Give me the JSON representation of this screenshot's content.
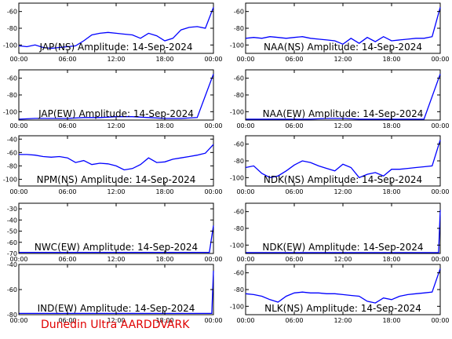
{
  "footer": "Dunedin Ultra AARDDVARK",
  "chart_data": [
    {
      "type": "line",
      "title": "JAP(NS) Amplitude: 14-Sep-2024",
      "xticks": [
        "00:00",
        "06:00",
        "12:00",
        "18:00",
        "00:00"
      ],
      "ylim": [
        -110,
        -50
      ],
      "yticks": [
        -100,
        -80,
        -60
      ],
      "color": "#0000ff",
      "x_hours": [
        0,
        1,
        2,
        3,
        4,
        5,
        6,
        7,
        8,
        9,
        10,
        11,
        12,
        13,
        14,
        15,
        16,
        17,
        18,
        19,
        20,
        21,
        22,
        23,
        24
      ],
      "values": [
        -101,
        -102,
        -100,
        -103,
        -104,
        -103,
        -102,
        -101,
        -95,
        -88,
        -86,
        -85,
        -86,
        -87,
        -88,
        -92,
        -86,
        -89,
        -95,
        -92,
        -82,
        -79,
        -78,
        -80,
        -55
      ]
    },
    {
      "type": "line",
      "title": "NAA(NS) Amplitude: 14-Sep-2024",
      "xticks": [
        "00:00",
        "06:00",
        "12:00",
        "18:00",
        "00:00"
      ],
      "ylim": [
        -110,
        -50
      ],
      "yticks": [
        -100,
        -80,
        -60
      ],
      "color": "#0000ff",
      "x_hours": [
        0,
        1,
        2,
        3,
        4,
        5,
        6,
        7,
        8,
        9,
        10,
        11,
        12,
        13,
        14,
        15,
        16,
        17,
        18,
        19,
        20,
        21,
        22,
        23,
        24
      ],
      "values": [
        -92,
        -91,
        -92,
        -90,
        -91,
        -92,
        -91,
        -90,
        -92,
        -93,
        -94,
        -95,
        -99,
        -92,
        -98,
        -91,
        -96,
        -90,
        -95,
        -94,
        -93,
        -92,
        -92,
        -90,
        -55
      ]
    },
    {
      "type": "line",
      "title": "JAP(EW) Amplitude: 14-Sep-2024",
      "xticks": [
        "00:00",
        "06:00",
        "12:00",
        "18:00",
        "00:00"
      ],
      "ylim": [
        -110,
        -50
      ],
      "yticks": [
        -100,
        -80,
        -60
      ],
      "color": "#0000ff",
      "x_hours": [
        0,
        2,
        4,
        6,
        8,
        10,
        12,
        14,
        16,
        18,
        20,
        22,
        24
      ],
      "values": [
        -109,
        -108,
        -108,
        -108,
        -107,
        -107,
        -106,
        -106,
        -107,
        -108,
        -108,
        -107,
        -55
      ]
    },
    {
      "type": "line",
      "title": "NAA(EW) Amplitude: 14-Sep-2024",
      "xticks": [
        "00:00",
        "06:00",
        "12:00",
        "18:00",
        "00:00"
      ],
      "ylim": [
        -110,
        -50
      ],
      "yticks": [
        -100,
        -80,
        -60
      ],
      "color": "#0000ff",
      "x_hours": [
        0,
        2,
        4,
        6,
        8,
        10,
        12,
        14,
        16,
        18,
        20,
        22,
        24
      ],
      "values": [
        -109,
        -109,
        -109,
        -109,
        -109,
        -108,
        -108,
        -109,
        -109,
        -109,
        -109,
        -109,
        -55
      ]
    },
    {
      "type": "line",
      "title": "NPM(NS) Amplitude: 14-Sep-2024",
      "xticks": [
        "00:00",
        "06:00",
        "12:00",
        "18:00",
        "00:00"
      ],
      "ylim": [
        -110,
        -35
      ],
      "yticks": [
        -100,
        -80,
        -60,
        -40
      ],
      "color": "#0000ff",
      "x_hours": [
        0,
        1,
        2,
        3,
        4,
        5,
        6,
        7,
        8,
        9,
        10,
        11,
        12,
        13,
        14,
        15,
        16,
        17,
        18,
        19,
        20,
        21,
        22,
        23,
        24
      ],
      "values": [
        -63,
        -63,
        -64,
        -66,
        -67,
        -66,
        -68,
        -75,
        -72,
        -78,
        -76,
        -77,
        -80,
        -86,
        -84,
        -78,
        -68,
        -75,
        -74,
        -70,
        -68,
        -66,
        -64,
        -61,
        -48
      ]
    },
    {
      "type": "line",
      "title": "NDK(NS) Amplitude: 14-Sep-2024",
      "xticks": [
        "00:00",
        "06:00",
        "12:00",
        "18:00",
        "00:00"
      ],
      "ylim": [
        -110,
        -50
      ],
      "yticks": [
        -100,
        -80,
        -60
      ],
      "color": "#0000ff",
      "x_hours": [
        0,
        1,
        2,
        3,
        4,
        5,
        6,
        7,
        8,
        9,
        10,
        11,
        12,
        13,
        14,
        15,
        16,
        17,
        18,
        19,
        20,
        21,
        22,
        23,
        24
      ],
      "values": [
        -88,
        -86,
        -95,
        -100,
        -98,
        -92,
        -85,
        -80,
        -82,
        -86,
        -89,
        -92,
        -84,
        -88,
        -100,
        -96,
        -94,
        -98,
        -90,
        -90,
        -89,
        -88,
        -87,
        -86,
        -55
      ]
    },
    {
      "type": "line",
      "title": "NWC(EW) Amplitude: 14-Sep-2024",
      "xticks": [
        "00:00",
        "06:00",
        "12:00",
        "18:00",
        "00:00"
      ],
      "ylim": [
        -70,
        -25
      ],
      "yticks": [
        -70,
        -60,
        -50,
        -40,
        -30
      ],
      "color": "#0000ff",
      "x_hours": [
        0,
        2,
        4,
        6,
        8,
        10,
        12,
        14,
        16,
        18,
        20,
        22,
        23.5,
        24
      ],
      "values": [
        -69,
        -69,
        -69,
        -69,
        -69,
        -69,
        -69,
        -69,
        -69,
        -69,
        -69,
        -69,
        -69,
        -45
      ]
    },
    {
      "type": "line",
      "title": "NDK(EW) Amplitude: 14-Sep-2024",
      "xticks": [
        "00:00",
        "06:00",
        "12:00",
        "18:00",
        "00:00"
      ],
      "ylim": [
        -110,
        -50
      ],
      "yticks": [
        -100,
        -80,
        -60
      ],
      "color": "#0000ff",
      "x_hours": [
        0,
        2,
        4,
        6,
        8,
        10,
        12,
        14,
        16,
        18,
        20,
        22,
        23.8,
        24
      ],
      "values": [
        -109,
        -109,
        -109,
        -109,
        -109,
        -109,
        -109,
        -109,
        -109,
        -109,
        -109,
        -109,
        -109,
        -58
      ]
    },
    {
      "type": "line",
      "title": "IND(EW) Amplitude: 14-Sep-2024",
      "xticks": [
        "00:00",
        "06:00",
        "12:00",
        "18:00",
        "00:00"
      ],
      "ylim": [
        -80,
        -40
      ],
      "yticks": [
        -80,
        -60,
        -40
      ],
      "color": "#0000ff",
      "x_hours": [
        0,
        2,
        4,
        6,
        8,
        10,
        12,
        14,
        16,
        18,
        20,
        22,
        23.8,
        24
      ],
      "values": [
        -79,
        -79,
        -79,
        -79,
        -79,
        -79,
        -79,
        -79,
        -79,
        -79,
        -79,
        -79,
        -79,
        -45
      ]
    },
    {
      "type": "line",
      "title": "NLK(NS) Amplitude: 14-Sep-2024",
      "xticks": [
        "00:00",
        "06:00",
        "12:00",
        "18:00",
        "00:00"
      ],
      "ylim": [
        -110,
        -50
      ],
      "yticks": [
        -100,
        -80,
        -60
      ],
      "color": "#0000ff",
      "x_hours": [
        0,
        1,
        2,
        3,
        4,
        5,
        6,
        7,
        8,
        9,
        10,
        11,
        12,
        13,
        14,
        15,
        16,
        17,
        18,
        19,
        20,
        21,
        22,
        23,
        24
      ],
      "values": [
        -85,
        -86,
        -88,
        -92,
        -95,
        -88,
        -84,
        -83,
        -84,
        -84,
        -85,
        -85,
        -86,
        -87,
        -88,
        -94,
        -96,
        -90,
        -92,
        -88,
        -86,
        -85,
        -84,
        -83,
        -55
      ]
    }
  ]
}
